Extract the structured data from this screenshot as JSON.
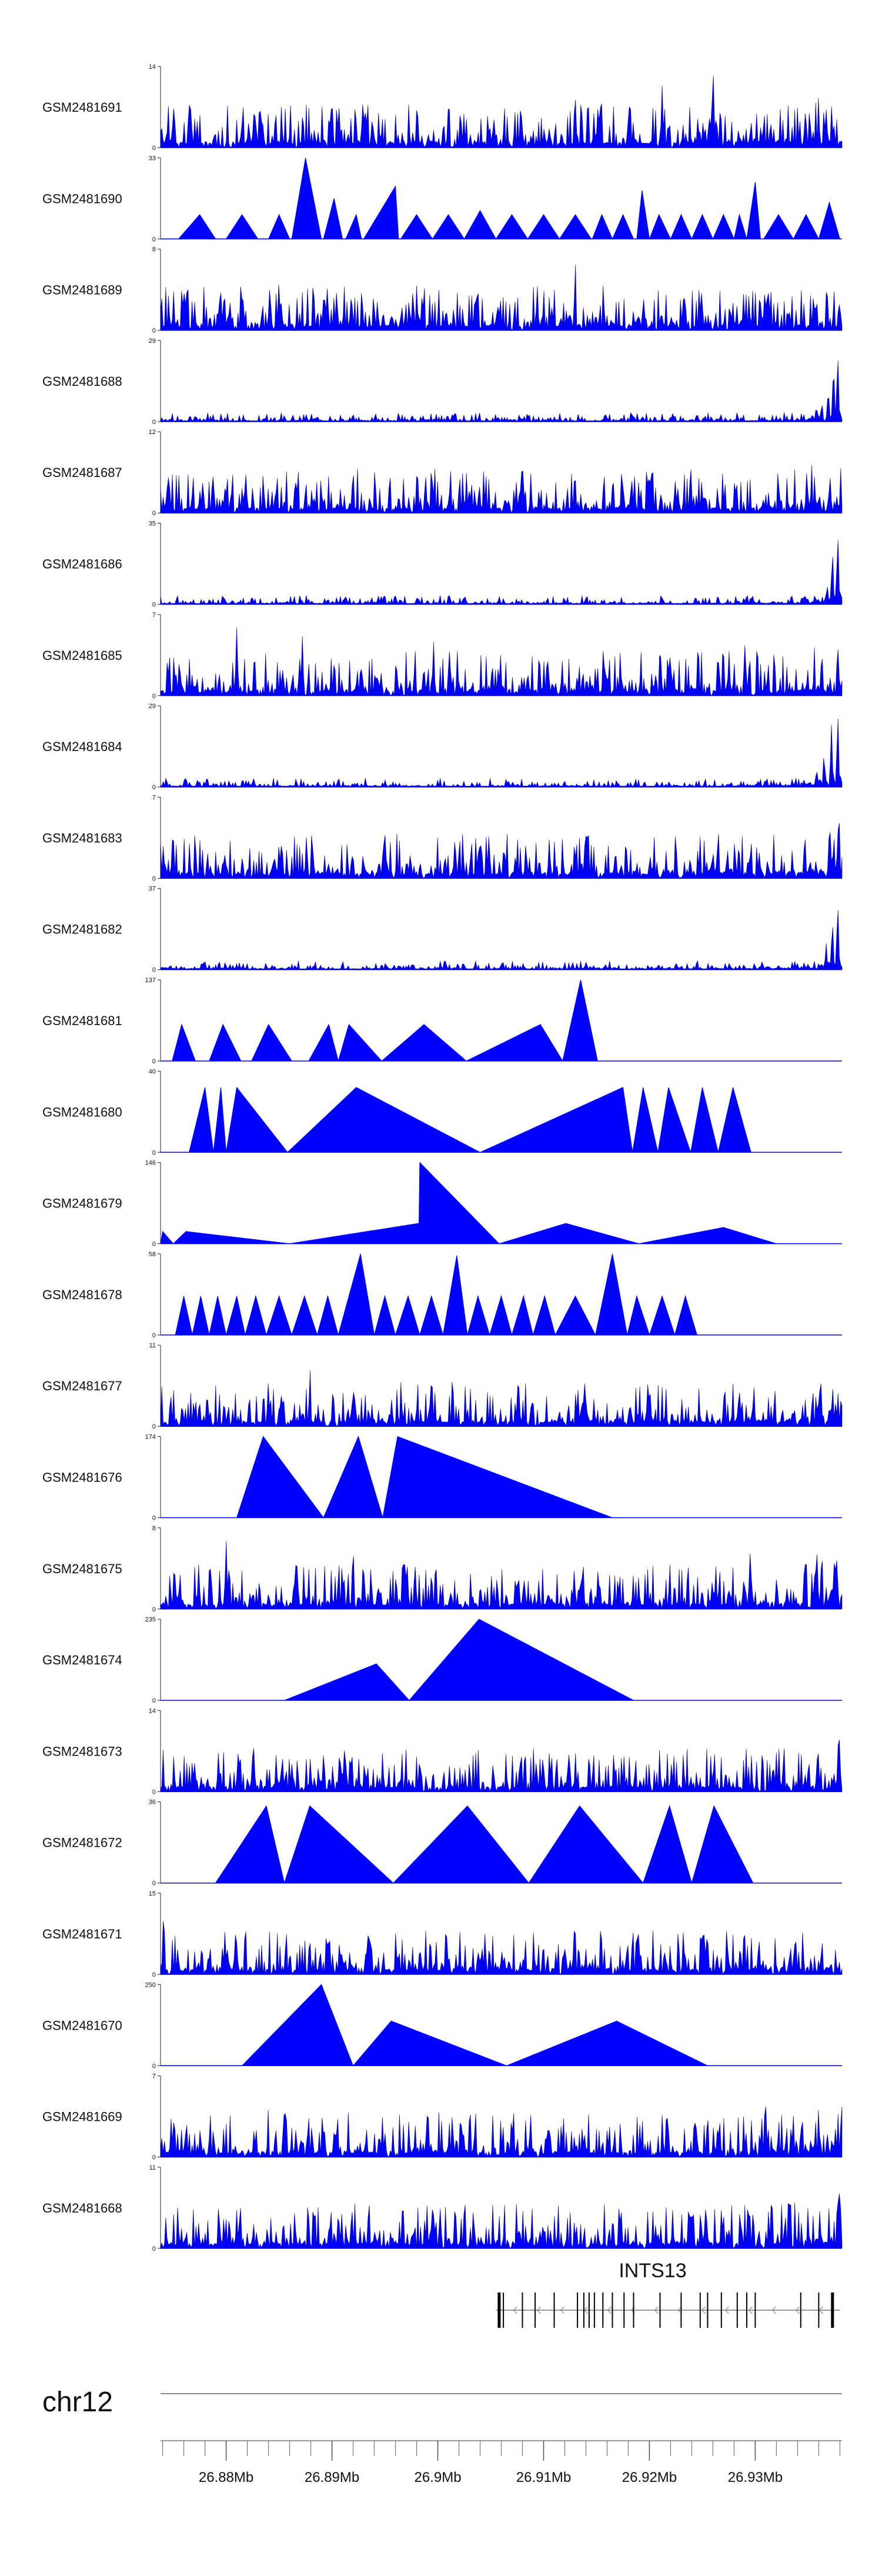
{
  "chart_data": {
    "type": "area",
    "chromosome": "chr12",
    "x_range": [
      26873800,
      26938200
    ],
    "x_ticks": [
      26880000,
      26890000,
      26900000,
      26910000,
      26920000,
      26930000
    ],
    "x_tick_labels": [
      "26.88Mb",
      "26.89Mb",
      "26.9Mb",
      "26.91Mb",
      "26.92Mb",
      "26.93Mb"
    ],
    "minor_tick_step": 2000,
    "gene": {
      "name": "INTS13",
      "start": 26905500,
      "end": 26938000,
      "strand": "-",
      "exons": [
        26905800,
        26906200,
        26908000,
        26909200,
        26911000,
        26913200,
        26913800,
        26914300,
        26914800,
        26915600,
        26916500,
        26917600,
        26918500,
        26921000,
        26923000,
        26924800,
        26925500,
        26926800,
        26928300,
        26929200,
        26930000,
        26934300,
        26936000,
        26937300
      ]
    },
    "series": [
      {
        "name": "GSM2481691",
        "ymax": 14,
        "profile": "dense",
        "peaks": [
          [
            26929500,
            1.4
          ],
          [
            26926000,
            1.2
          ],
          [
            26890000,
            0.8
          ],
          [
            26921200,
            0.9
          ],
          [
            26913000,
            0.7
          ],
          [
            26901000,
            0.6
          ]
        ],
        "skew": [
          26936000,
          0.25
        ]
      },
      {
        "name": "GSM2481690",
        "ymax": 33,
        "profile": "tri",
        "tris": [
          [
            26875500,
            26877500,
            26879000,
            0.3
          ],
          [
            26880000,
            26881500,
            26883000,
            0.3
          ],
          [
            26884000,
            26885000,
            26886000,
            0.3
          ],
          [
            26886200,
            26887500,
            26889000,
            1.0
          ],
          [
            26889200,
            26890200,
            26891000,
            0.5
          ],
          [
            26891300,
            26892300,
            26892800,
            0.3
          ],
          [
            26893000,
            26896000,
            26896300,
            0.65
          ],
          [
            26896500,
            26898000,
            26899500,
            0.3
          ],
          [
            26899500,
            26901000,
            26902500,
            0.3
          ],
          [
            26902500,
            26904000,
            26905500,
            0.35
          ],
          [
            26905500,
            26907000,
            26908500,
            0.3
          ],
          [
            26908500,
            26910000,
            26911500,
            0.3
          ],
          [
            26911500,
            26913000,
            26914500,
            0.3
          ],
          [
            26914600,
            26915500,
            26916500,
            0.3
          ],
          [
            26916500,
            26917500,
            26918500,
            0.3
          ],
          [
            26918800,
            26919300,
            26920000,
            0.6
          ],
          [
            26920000,
            26920900,
            26922000,
            0.3
          ],
          [
            26922000,
            26923000,
            26924000,
            0.3
          ],
          [
            26924000,
            26925000,
            26926000,
            0.3
          ],
          [
            26926000,
            26927000,
            26928000,
            0.3
          ],
          [
            26928000,
            26928500,
            26929200,
            0.3
          ],
          [
            26929200,
            26930000,
            26930500,
            0.7
          ],
          [
            26930800,
            26932200,
            26933600,
            0.3
          ],
          [
            26933600,
            26934800,
            26936000,
            0.3
          ],
          [
            26936000,
            26937000,
            26938000,
            0.45
          ]
        ]
      },
      {
        "name": "GSM2481689",
        "ymax": 8,
        "profile": "dense",
        "peaks": [
          [
            26913000,
            1.0
          ],
          [
            26909000,
            0.8
          ],
          [
            26885000,
            0.7
          ],
          [
            26928000,
            0.75
          ],
          [
            26876000,
            0.6
          ]
        ],
        "skew": [
          26938000,
          0.15
        ]
      },
      {
        "name": "GSM2481688",
        "ymax": 29,
        "profile": "sparse",
        "peaks": [
          [
            26937800,
            1.0
          ],
          [
            26937400,
            0.8
          ],
          [
            26936900,
            0.45
          ],
          [
            26936300,
            0.28
          ]
        ],
        "skew": [
          26938000,
          0.12
        ]
      },
      {
        "name": "GSM2481687",
        "ymax": 12,
        "profile": "dense",
        "peaks": [
          [
            26937900,
            1.0
          ],
          [
            26874500,
            0.6
          ],
          [
            26883500,
            0.55
          ],
          [
            26890000,
            0.45
          ]
        ],
        "skew": [
          26938000,
          0.15
        ]
      },
      {
        "name": "GSM2481686",
        "ymax": 35,
        "profile": "sparse",
        "peaks": [
          [
            26937800,
            1.0
          ],
          [
            26937300,
            0.75
          ],
          [
            26936800,
            0.3
          ]
        ],
        "skew": [
          26938000,
          0.1
        ]
      },
      {
        "name": "GSM2481685",
        "ymax": 7,
        "profile": "dense",
        "peaks": [
          [
            26881000,
            0.95
          ],
          [
            26887200,
            0.8
          ],
          [
            26899600,
            0.75
          ],
          [
            26929000,
            0.72
          ],
          [
            26937200,
            0.7
          ]
        ],
        "skew": [
          26938000,
          0.15
        ]
      },
      {
        "name": "GSM2481684",
        "ymax": 29,
        "profile": "sparse",
        "peaks": [
          [
            26937800,
            1.0
          ],
          [
            26937200,
            0.8
          ],
          [
            26936500,
            0.45
          ],
          [
            26935800,
            0.25
          ]
        ],
        "skew": [
          26938000,
          0.12
        ]
      },
      {
        "name": "GSM2481683",
        "ymax": 7,
        "profile": "dense",
        "peaks": [
          [
            26937900,
            1.0
          ],
          [
            26914200,
            0.85
          ],
          [
            26927500,
            0.8
          ],
          [
            26885000,
            0.5
          ]
        ],
        "skew": [
          26938000,
          0.15
        ]
      },
      {
        "name": "GSM2481682",
        "ymax": 37,
        "profile": "sparse",
        "peaks": [
          [
            26937800,
            1.0
          ],
          [
            26937300,
            0.7
          ],
          [
            26936700,
            0.35
          ]
        ],
        "skew": [
          26938000,
          0.1
        ]
      },
      {
        "name": "GSM2481681",
        "ymax": 137,
        "profile": "tri",
        "tris": [
          [
            26874900,
            26875800,
            26877100,
            0.45
          ],
          [
            26878400,
            26879700,
            26881400,
            0.45
          ],
          [
            26882400,
            26884000,
            26886200,
            0.45
          ],
          [
            26887800,
            26889700,
            26890600,
            0.45
          ],
          [
            26890600,
            26891600,
            26894700,
            0.45
          ],
          [
            26894700,
            26898700,
            26902700,
            0.45
          ],
          [
            26902700,
            26909700,
            26911800,
            0.45
          ],
          [
            26911800,
            26913500,
            26915100,
            1.0
          ]
        ]
      },
      {
        "name": "GSM2481680",
        "ymax": 40,
        "profile": "tri",
        "tris": [
          [
            26876500,
            26878000,
            26878800,
            0.8
          ],
          [
            26878800,
            26879500,
            26880000,
            0.8
          ],
          [
            26880000,
            26881000,
            26885800,
            0.8
          ],
          [
            26885800,
            26892300,
            26904000,
            0.8
          ],
          [
            26904000,
            26917500,
            26918400,
            0.8
          ],
          [
            26918400,
            26919400,
            26920800,
            0.8
          ],
          [
            26920800,
            26921800,
            26923900,
            0.8
          ],
          [
            26923900,
            26925000,
            26926500,
            0.8
          ],
          [
            26926500,
            26927900,
            26929600,
            0.8
          ]
        ]
      },
      {
        "name": "GSM2481679",
        "ymax": 146,
        "profile": "tri",
        "tris": [
          [
            26873800,
            26874000,
            26875000,
            0.15
          ],
          [
            26875000,
            26876200,
            26886000,
            0.15
          ],
          [
            26886000,
            26898200,
            26898300,
            0.25
          ],
          [
            26898200,
            26898300,
            26905800,
            1.0
          ],
          [
            26905800,
            26912100,
            26919000,
            0.25
          ],
          [
            26919000,
            26927000,
            26932000,
            0.2
          ]
        ]
      },
      {
        "name": "GSM2481678",
        "ymax": 58,
        "profile": "tri",
        "tris": [
          [
            26875200,
            26876000,
            26876800,
            0.48
          ],
          [
            26876800,
            26877600,
            26878400,
            0.48
          ],
          [
            26878400,
            26879200,
            26880000,
            0.48
          ],
          [
            26880000,
            26881000,
            26881800,
            0.48
          ],
          [
            26881800,
            26882800,
            26883800,
            0.48
          ],
          [
            26883800,
            26885000,
            26886200,
            0.48
          ],
          [
            26886200,
            26887400,
            26888600,
            0.48
          ],
          [
            26888600,
            26889600,
            26890600,
            0.48
          ],
          [
            26890600,
            26892700,
            26894000,
            1.0
          ],
          [
            26894000,
            26895000,
            26896000,
            0.48
          ],
          [
            26896000,
            26897200,
            26898300,
            0.48
          ],
          [
            26898300,
            26899400,
            26900500,
            0.48
          ],
          [
            26900500,
            26901800,
            26902800,
            0.98
          ],
          [
            26902800,
            26903800,
            26904900,
            0.48
          ],
          [
            26904900,
            26906000,
            26907000,
            0.48
          ],
          [
            26907000,
            26908100,
            26909000,
            0.48
          ],
          [
            26909000,
            26910100,
            26911100,
            0.48
          ],
          [
            26911100,
            26913000,
            26914900,
            0.48
          ],
          [
            26914900,
            26916500,
            26917900,
            1.0
          ],
          [
            26917900,
            26918800,
            26920000,
            0.48
          ],
          [
            26920000,
            26921200,
            26922400,
            0.48
          ],
          [
            26922400,
            26923400,
            26924500,
            0.48
          ]
        ]
      },
      {
        "name": "GSM2481677",
        "ymax": 11,
        "profile": "dense",
        "peaks": [
          [
            26888000,
            1.0
          ],
          [
            26892000,
            0.6
          ],
          [
            26891500,
            0.3
          ],
          [
            26937000,
            0.3
          ],
          [
            26885000,
            0.25
          ]
        ],
        "skew": [
          26938000,
          0.1
        ]
      },
      {
        "name": "GSM2481676",
        "ymax": 174,
        "profile": "tri",
        "tris": [
          [
            26881000,
            26883500,
            26889200,
            1.0
          ],
          [
            26889200,
            26892500,
            26894800,
            1.0
          ],
          [
            26894800,
            26896200,
            26916500,
            1.0
          ]
        ]
      },
      {
        "name": "GSM2481675",
        "ymax": 8,
        "profile": "dense",
        "peaks": [
          [
            26880000,
            1.0
          ],
          [
            26892000,
            0.95
          ],
          [
            26935800,
            0.95
          ],
          [
            26877000,
            0.7
          ],
          [
            26929500,
            0.75
          ]
        ],
        "skew": [
          26938000,
          0.2
        ]
      },
      {
        "name": "GSM2481674",
        "ymax": 235,
        "profile": "tri",
        "tris": [
          [
            26885500,
            26894200,
            26897300,
            0.45
          ],
          [
            26897300,
            26903900,
            26918500,
            1.0
          ]
        ]
      },
      {
        "name": "GSM2481673",
        "ymax": 14,
        "profile": "dense",
        "peaks": [
          [
            26937900,
            1.0
          ],
          [
            26877000,
            0.45
          ],
          [
            26882600,
            0.55
          ],
          [
            26889300,
            0.3
          ]
        ],
        "skew": [
          26938000,
          0.15
        ]
      },
      {
        "name": "GSM2481672",
        "ymax": 36,
        "profile": "tri",
        "tris": [
          [
            26879000,
            26883800,
            26885500,
            0.95
          ],
          [
            26885500,
            26887900,
            26895800,
            0.95
          ],
          [
            26895800,
            26902800,
            26908600,
            0.95
          ],
          [
            26908600,
            26913400,
            26919400,
            0.95
          ],
          [
            26919400,
            26921900,
            26924000,
            0.95
          ],
          [
            26924000,
            26926100,
            26929800,
            0.95
          ]
        ]
      },
      {
        "name": "GSM2481671",
        "ymax": 15,
        "profile": "dense",
        "peaks": [
          [
            26874100,
            1.0
          ],
          [
            26881000,
            0.45
          ],
          [
            26919000,
            0.5
          ]
        ],
        "skew": [
          26938000,
          0.1
        ]
      },
      {
        "name": "GSM2481670",
        "ymax": 250,
        "profile": "tri",
        "tris": [
          [
            26881500,
            26889000,
            26892000,
            1.0
          ],
          [
            26892000,
            26895600,
            26906500,
            0.55
          ],
          [
            26906500,
            26916900,
            26925500,
            0.55
          ]
        ]
      },
      {
        "name": "GSM2481669",
        "ymax": 7,
        "profile": "dense",
        "peaks": [
          [
            26937900,
            1.0
          ],
          [
            26884000,
            0.7
          ],
          [
            26889400,
            0.72
          ],
          [
            26931000,
            0.7
          ],
          [
            26921200,
            0.6
          ]
        ],
        "skew": [
          26938000,
          0.2
        ]
      },
      {
        "name": "GSM2481668",
        "ymax": 11,
        "profile": "dense",
        "peaks": [
          [
            26937900,
            1.0
          ],
          [
            26929800,
            0.6
          ],
          [
            26881000,
            0.5
          ],
          [
            26927000,
            0.5
          ]
        ],
        "skew": [
          26938000,
          0.15
        ]
      }
    ]
  }
}
